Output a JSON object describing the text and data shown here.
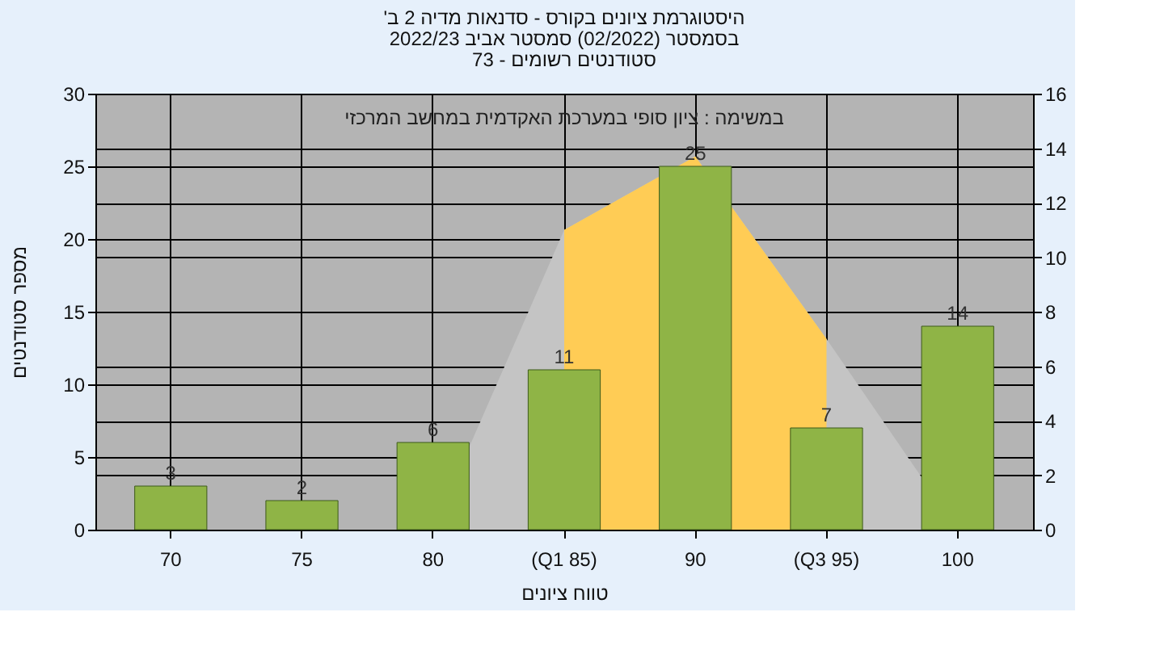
{
  "chart_data": {
    "type": "bar",
    "title": [
      "'היסטוגרמת ציונים בקורס - סדנאות מדיה 2 ב",
      "בסמסטר  (02/2022)  סמסטר אביב 2022/23",
      "סטודנטים רשומים - 73"
    ],
    "annotations": [
      "במשימה : ציון סופי במערכת האקדמית במחשב המרכזי"
    ],
    "xlabel": "טווח ציונים",
    "ylabel": "מספר סטודנטים",
    "categories": [
      "70",
      "75",
      "80",
      "(Q1 85)",
      "90",
      "(Q3 95)",
      "100"
    ],
    "series": [
      {
        "type": "area",
        "axis": "y2",
        "color": "#c4c4c4",
        "values": [
          null,
          null,
          0,
          11,
          13.7,
          7,
          0
        ]
      },
      {
        "type": "area",
        "axis": "y2",
        "color": "#ffcc55",
        "values": [
          null,
          null,
          null,
          11,
          13.7,
          7,
          null
        ]
      },
      {
        "color": "#8fb446",
        "values": [
          3,
          2,
          6,
          11,
          25,
          7,
          14
        ],
        "value_labels": [
          "3",
          "2",
          "6",
          "11",
          "25",
          "7",
          "14"
        ]
      }
    ],
    "ylim": [
      0,
      30
    ],
    "yticks": [
      0,
      5,
      10,
      15,
      20,
      25,
      30
    ],
    "y2lim": [
      0,
      16
    ],
    "y2ticks": [
      0,
      2,
      4,
      6,
      8,
      10,
      12,
      14,
      16
    ],
    "grid": true
  }
}
